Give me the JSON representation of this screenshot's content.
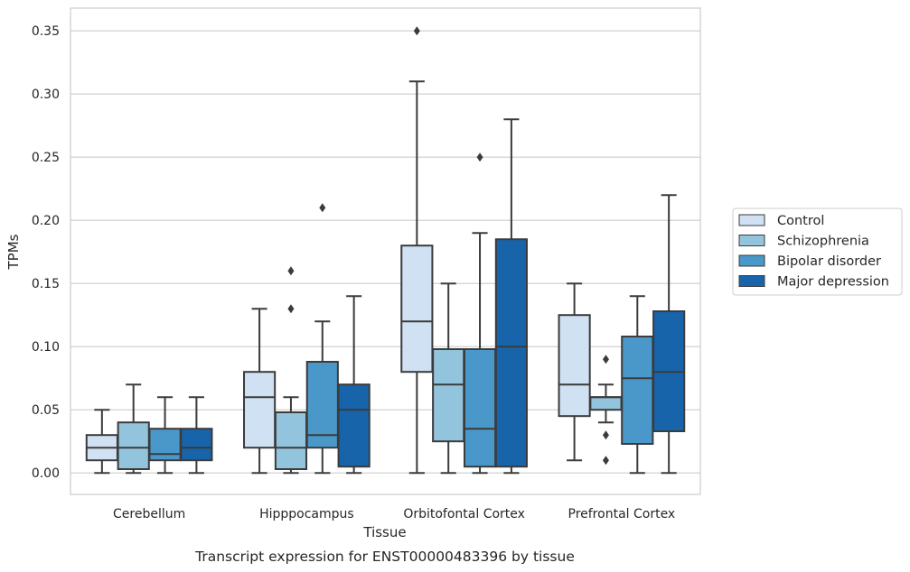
{
  "caption": "Transcript expression for ENST00000483396 by tissue",
  "chart_data": {
    "type": "box",
    "xlabel": "Tissue",
    "ylabel": "TPMs",
    "ylim": [
      -0.017,
      0.368
    ],
    "yticks": [
      0.0,
      0.05,
      0.1,
      0.15,
      0.2,
      0.25,
      0.3,
      0.35
    ],
    "ytick_labels": [
      "0.00",
      "0.05",
      "0.10",
      "0.15",
      "0.20",
      "0.25",
      "0.30",
      "0.35"
    ],
    "grid": "horizontal",
    "legend_position": "right",
    "categories": [
      "Cerebellum",
      "Hipppocampus",
      "Orbitofontal Cortex",
      "Prefrontal Cortex"
    ],
    "series": [
      {
        "name": "Control",
        "color": "#cfe1f2",
        "boxes": [
          {
            "min": 0.0,
            "q1": 0.01,
            "median": 0.02,
            "q3": 0.03,
            "max": 0.05,
            "outliers": []
          },
          {
            "min": 0.0,
            "q1": 0.02,
            "median": 0.06,
            "q3": 0.08,
            "max": 0.13,
            "outliers": []
          },
          {
            "min": 0.0,
            "q1": 0.08,
            "median": 0.12,
            "q3": 0.18,
            "max": 0.31,
            "outliers": [
              0.35
            ]
          },
          {
            "min": 0.01,
            "q1": 0.045,
            "median": 0.07,
            "q3": 0.125,
            "max": 0.15,
            "outliers": []
          }
        ]
      },
      {
        "name": "Schizophrenia",
        "color": "#93c4de",
        "boxes": [
          {
            "min": 0.0,
            "q1": 0.003,
            "median": 0.02,
            "q3": 0.04,
            "max": 0.07,
            "outliers": []
          },
          {
            "min": 0.0,
            "q1": 0.003,
            "median": 0.02,
            "q3": 0.048,
            "max": 0.06,
            "outliers": [
              0.13,
              0.16
            ]
          },
          {
            "min": 0.0,
            "q1": 0.025,
            "median": 0.07,
            "q3": 0.098,
            "max": 0.15,
            "outliers": []
          },
          {
            "min": 0.04,
            "q1": 0.05,
            "median": 0.06,
            "q3": 0.06,
            "max": 0.07,
            "outliers": [
              0.01,
              0.03,
              0.09
            ]
          }
        ]
      },
      {
        "name": "Bipolar disorder",
        "color": "#4a98c9",
        "boxes": [
          {
            "min": 0.0,
            "q1": 0.01,
            "median": 0.015,
            "q3": 0.035,
            "max": 0.06,
            "outliers": []
          },
          {
            "min": 0.0,
            "q1": 0.02,
            "median": 0.03,
            "q3": 0.088,
            "max": 0.12,
            "outliers": [
              0.21
            ]
          },
          {
            "min": 0.0,
            "q1": 0.005,
            "median": 0.035,
            "q3": 0.098,
            "max": 0.19,
            "outliers": [
              0.25
            ]
          },
          {
            "min": 0.0,
            "q1": 0.023,
            "median": 0.075,
            "q3": 0.108,
            "max": 0.14,
            "outliers": []
          }
        ]
      },
      {
        "name": "Major depression",
        "color": "#1764ab",
        "boxes": [
          {
            "min": 0.0,
            "q1": 0.01,
            "median": 0.02,
            "q3": 0.035,
            "max": 0.06,
            "outliers": []
          },
          {
            "min": 0.0,
            "q1": 0.005,
            "median": 0.05,
            "q3": 0.07,
            "max": 0.14,
            "outliers": []
          },
          {
            "min": 0.0,
            "q1": 0.005,
            "median": 0.1,
            "q3": 0.185,
            "max": 0.28,
            "outliers": []
          },
          {
            "min": 0.0,
            "q1": 0.033,
            "median": 0.08,
            "q3": 0.128,
            "max": 0.22,
            "outliers": []
          }
        ]
      }
    ]
  }
}
